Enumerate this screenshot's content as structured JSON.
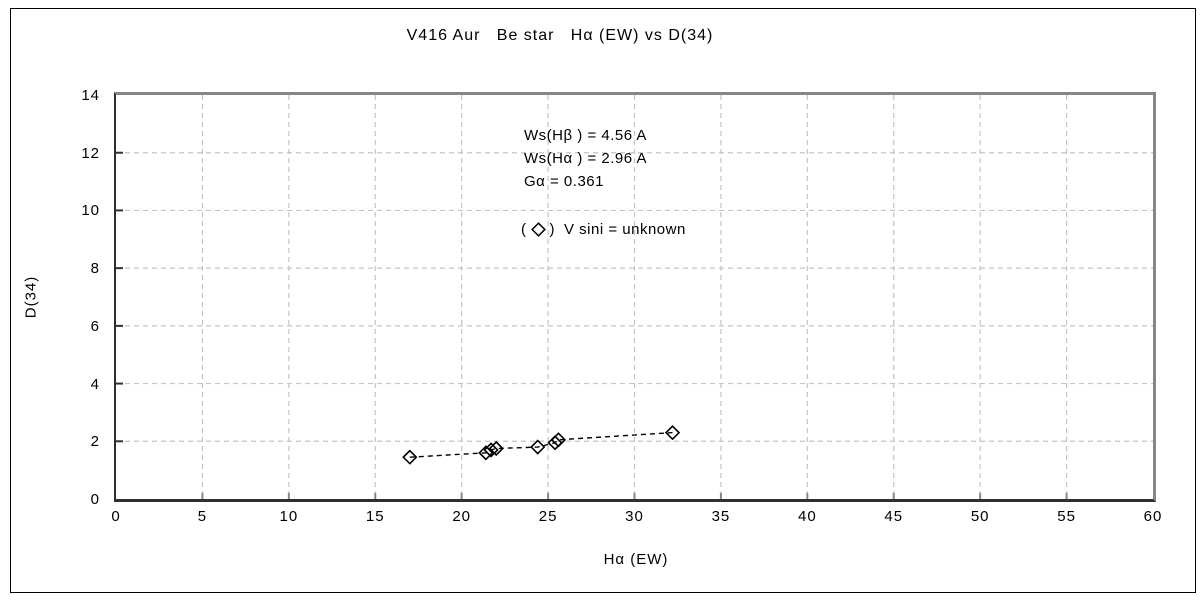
{
  "chart_data": {
    "type": "scatter",
    "title": "V416 Aur   Be star   Hα (EW) vs D(34)",
    "xlabel": "Hα (EW)",
    "ylabel": "D(34)",
    "xlim": [
      0,
      60
    ],
    "ylim": [
      0,
      14
    ],
    "xticks": [
      0,
      5,
      10,
      15,
      20,
      25,
      30,
      35,
      40,
      45,
      50,
      55,
      60
    ],
    "yticks": [
      0,
      2,
      4,
      6,
      8,
      10,
      12,
      14
    ],
    "grid": true,
    "grid_style": "dashed",
    "annotations": [
      "Ws(Hβ ) = 4.56 A",
      "Ws(Hα ) = 2.96 A",
      "Gα = 0.361"
    ],
    "series": [
      {
        "name": "V sini = unknown",
        "marker": "open-diamond",
        "line_style": "dashed",
        "points": [
          [
            17.0,
            1.45
          ],
          [
            21.4,
            1.6
          ],
          [
            21.7,
            1.7
          ],
          [
            22.0,
            1.75
          ],
          [
            24.4,
            1.8
          ],
          [
            25.4,
            1.95
          ],
          [
            25.6,
            2.05
          ],
          [
            32.2,
            2.3
          ]
        ]
      }
    ]
  },
  "legend": {
    "open": "(",
    "close": ")",
    "marker": "open-diamond",
    "text": "V sini = unknown"
  },
  "colors": {
    "background": "#ffffff",
    "text": "#000000",
    "grid": "#c4c4c4",
    "frame_light": "#868686",
    "frame_dark": "#2f2f2f",
    "marker": "#000000",
    "line": "#000000",
    "border": "#000000"
  }
}
